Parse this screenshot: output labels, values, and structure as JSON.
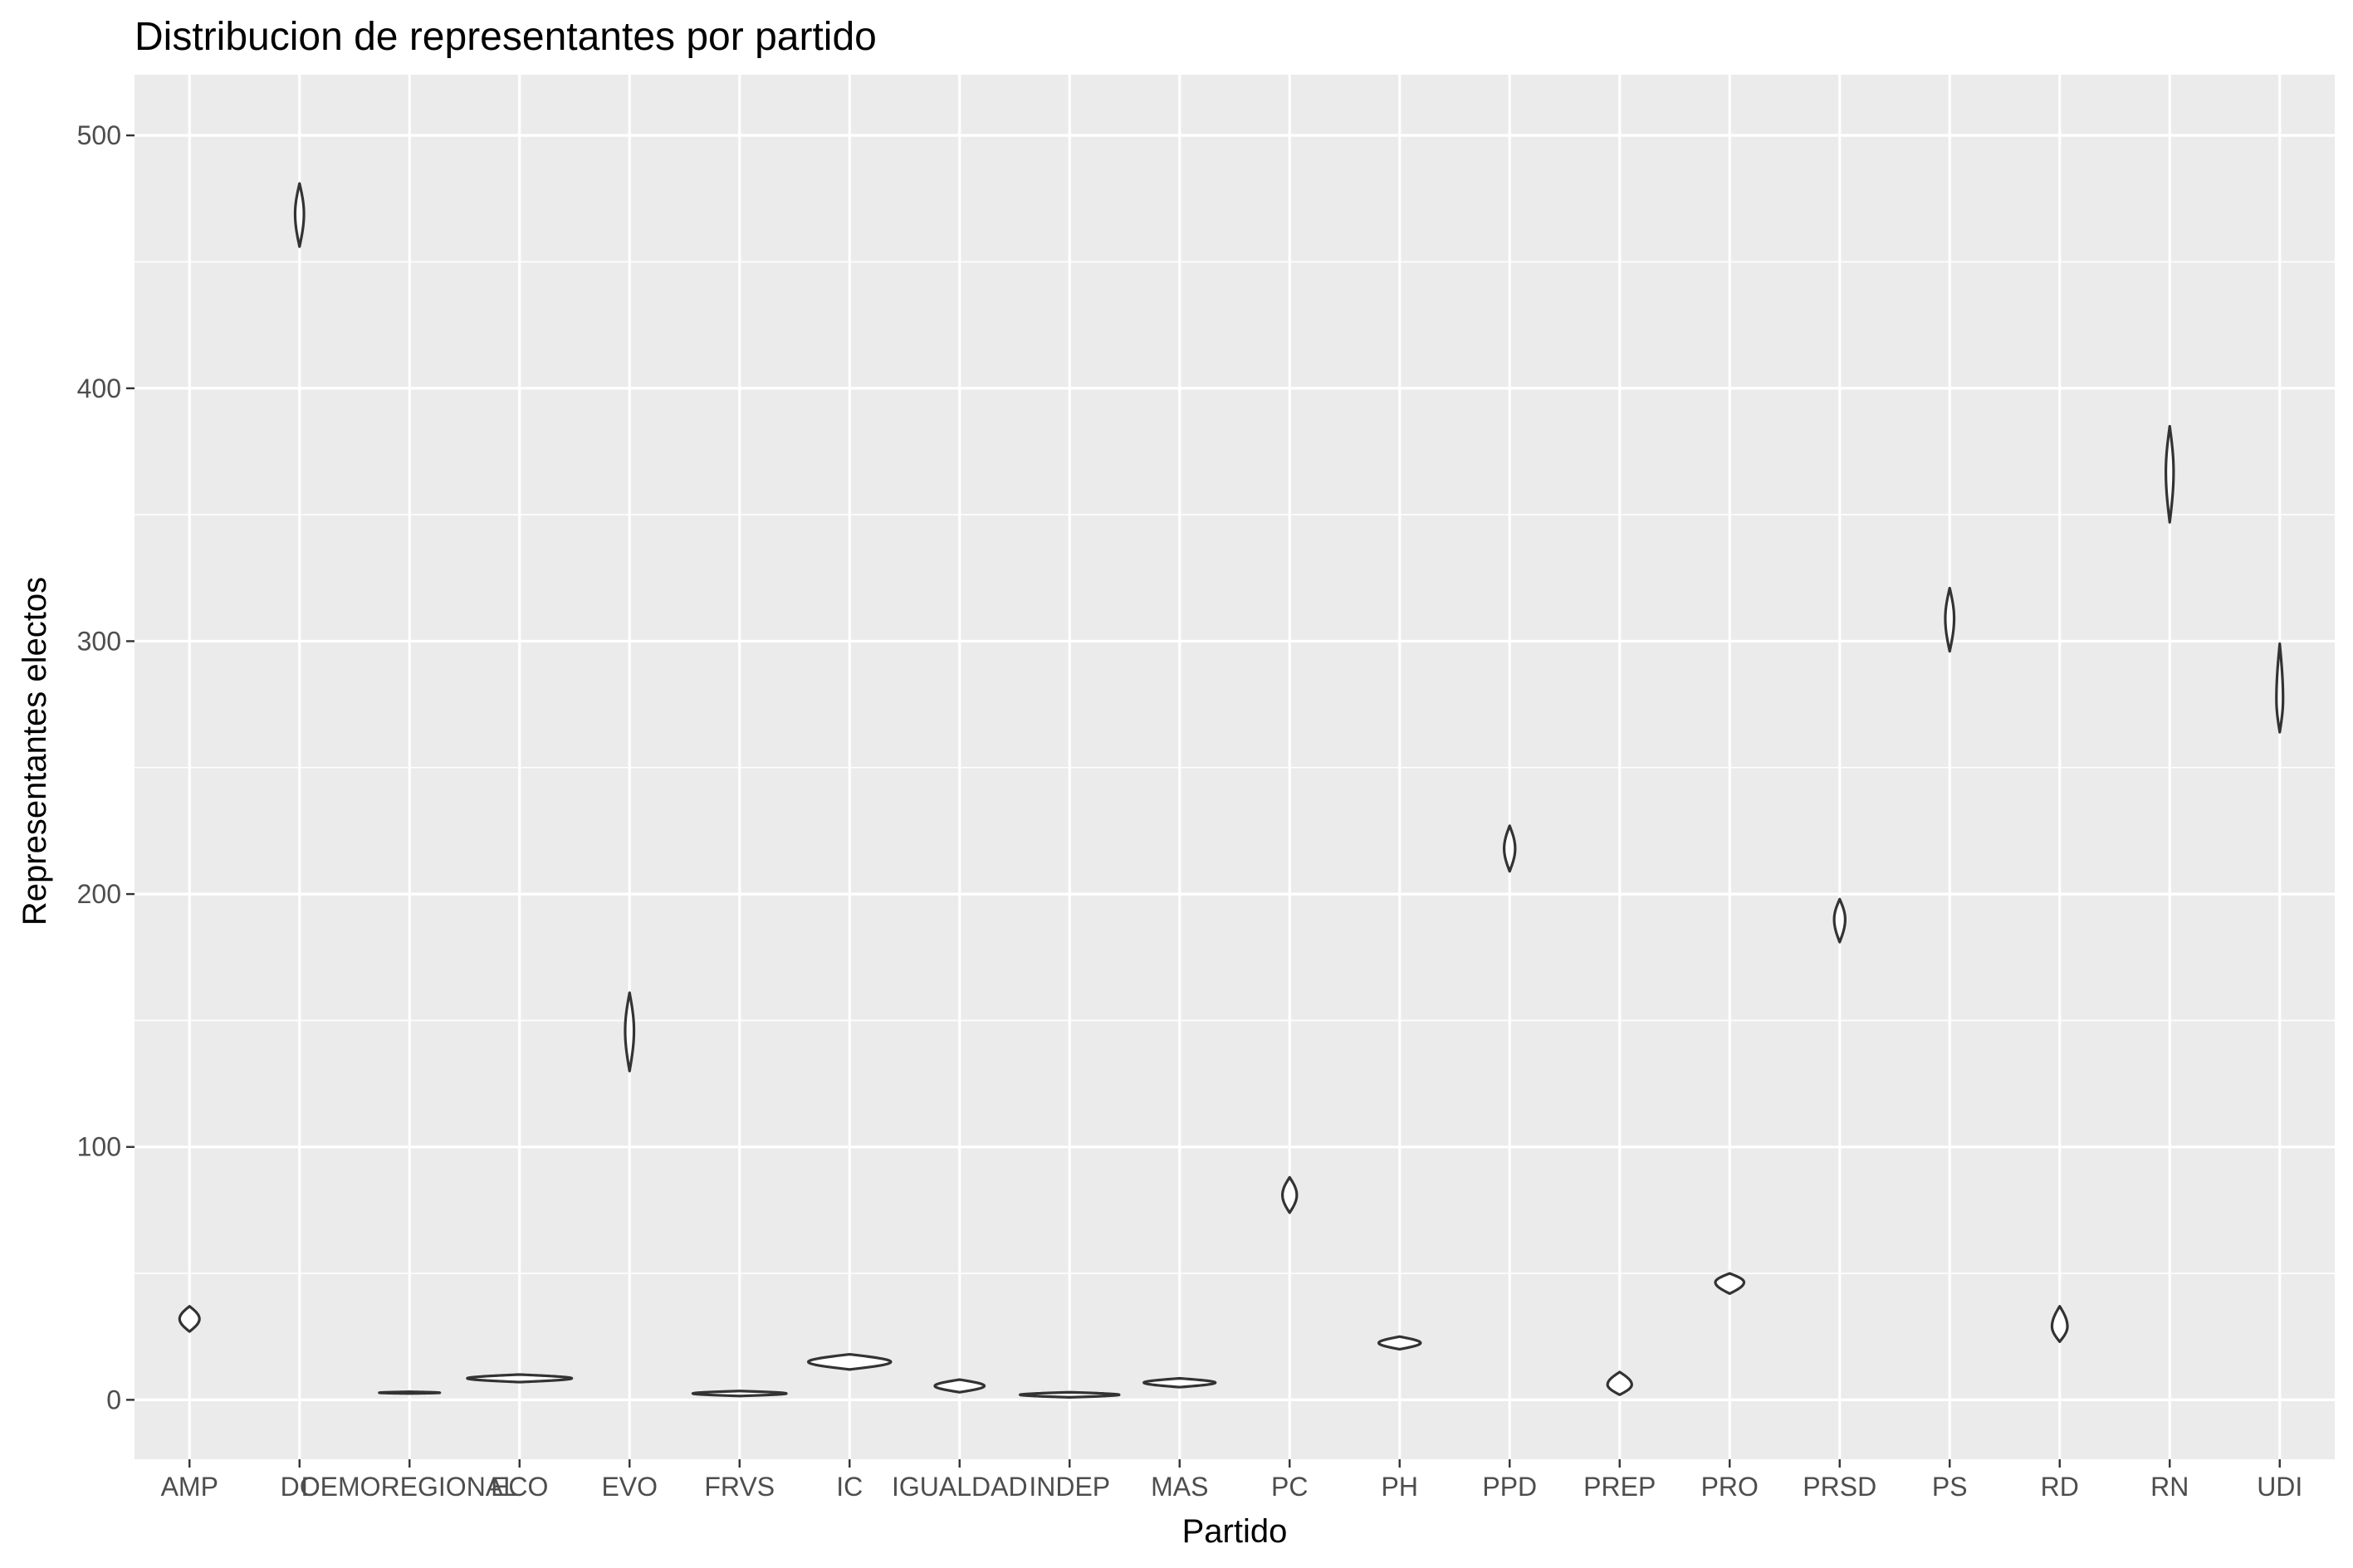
{
  "chart_data": {
    "type": "violin",
    "title": "Distribucion de representantes por partido",
    "xlabel": "Partido",
    "ylabel": "Representantes electos",
    "ylim": [
      -23.5,
      524
    ],
    "yticks": [
      0,
      100,
      200,
      300,
      400,
      500
    ],
    "grid": true,
    "legend": "none",
    "background": "#ebebeb",
    "categories": [
      "AMP",
      "DC",
      "DEMOREGIONAL",
      "ECO",
      "EVO",
      "FRVS",
      "IC",
      "IGUALDAD",
      "INDEP",
      "MAS",
      "PC",
      "PH",
      "PPD",
      "PREP",
      "PRO",
      "PRSD",
      "PS",
      "RD",
      "RN",
      "UDI"
    ],
    "distributions": [
      {
        "category": "AMP",
        "min": 27,
        "max": 37,
        "center": 32,
        "width": 0.18
      },
      {
        "category": "DC",
        "min": 456,
        "max": 481,
        "center": 469,
        "width": 0.08
      },
      {
        "category": "DEMOREGIONAL",
        "min": 2.5,
        "max": 3.2,
        "center": 2.8,
        "width": 0.55
      },
      {
        "category": "ECO",
        "min": 7,
        "max": 10,
        "center": 8.5,
        "width": 0.95
      },
      {
        "category": "EVO",
        "min": 130,
        "max": 161,
        "center": 146,
        "width": 0.08
      },
      {
        "category": "FRVS",
        "min": 1.5,
        "max": 3.5,
        "center": 2.5,
        "width": 0.85
      },
      {
        "category": "IC",
        "min": 12,
        "max": 18,
        "center": 15,
        "width": 0.75
      },
      {
        "category": "IGUALDAD",
        "min": 3,
        "max": 8,
        "center": 5.5,
        "width": 0.45
      },
      {
        "category": "INDEP",
        "min": 1,
        "max": 3,
        "center": 2,
        "width": 0.9
      },
      {
        "category": "MAS",
        "min": 5,
        "max": 8.5,
        "center": 6.8,
        "width": 0.65
      },
      {
        "category": "PC",
        "min": 74,
        "max": 88,
        "center": 81,
        "width": 0.13
      },
      {
        "category": "PH",
        "min": 20,
        "max": 25,
        "center": 22.5,
        "width": 0.38
      },
      {
        "category": "PPD",
        "min": 209,
        "max": 227,
        "center": 218,
        "width": 0.1
      },
      {
        "category": "PREP",
        "min": 2,
        "max": 11,
        "center": 6,
        "width": 0.22
      },
      {
        "category": "PRO",
        "min": 42,
        "max": 50,
        "center": 46.5,
        "width": 0.26
      },
      {
        "category": "PRSD",
        "min": 181,
        "max": 198,
        "center": 190,
        "width": 0.1
      },
      {
        "category": "PS",
        "min": 296,
        "max": 321,
        "center": 309,
        "width": 0.08
      },
      {
        "category": "RD",
        "min": 23,
        "max": 37,
        "center": 29,
        "width": 0.14
      },
      {
        "category": "RN",
        "min": 347,
        "max": 385,
        "center": 367,
        "width": 0.07
      },
      {
        "category": "UDI",
        "min": 264,
        "max": 299,
        "center": 277,
        "width": 0.06
      }
    ]
  }
}
